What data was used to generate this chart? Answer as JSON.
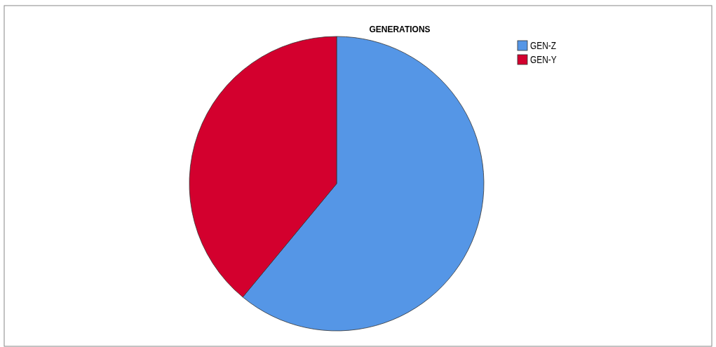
{
  "chart_data": {
    "type": "pie",
    "title": "GENERATIONS",
    "categories": [
      "GEN-Z",
      "GEN-Y"
    ],
    "values": [
      61,
      39
    ],
    "colors": [
      "#5596e6",
      "#d3002e"
    ],
    "legend": "top right"
  }
}
